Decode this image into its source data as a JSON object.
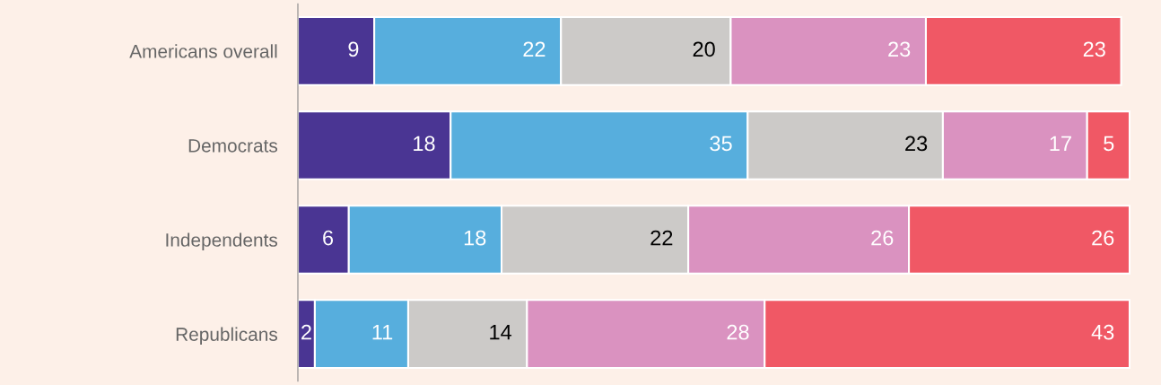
{
  "chart_data": {
    "type": "bar",
    "orientation": "horizontal",
    "stacked": true,
    "data_labels": true,
    "legend": false,
    "grid": false,
    "categories": [
      "Americans overall",
      "Democrats",
      "Independents",
      "Republicans"
    ],
    "xlim": [
      0,
      101.7
    ],
    "series": [
      {
        "color": "#4a3593",
        "values": [
          9,
          18,
          6,
          2
        ]
      },
      {
        "color": "#57aedd",
        "values": [
          22,
          35,
          18,
          11
        ]
      },
      {
        "color": "#cccac8",
        "values": [
          20,
          23,
          22,
          14
        ]
      },
      {
        "color": "#da92c0",
        "values": [
          23,
          17,
          26,
          28
        ]
      },
      {
        "color": "#f05865",
        "values": [
          23,
          5,
          26,
          43
        ]
      }
    ]
  }
}
